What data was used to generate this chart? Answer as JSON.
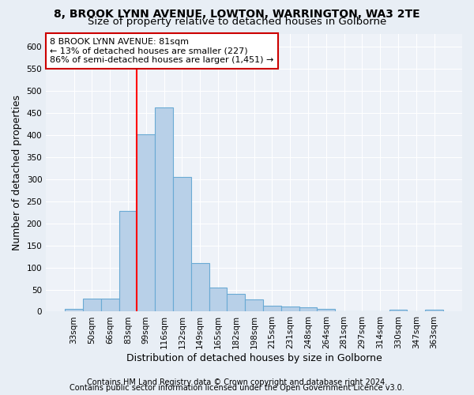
{
  "title1": "8, BROOK LYNN AVENUE, LOWTON, WARRINGTON, WA3 2TE",
  "title2": "Size of property relative to detached houses in Golborne",
  "xlabel": "Distribution of detached houses by size in Golborne",
  "ylabel": "Number of detached properties",
  "categories": [
    "33sqm",
    "50sqm",
    "66sqm",
    "83sqm",
    "99sqm",
    "116sqm",
    "132sqm",
    "149sqm",
    "165sqm",
    "182sqm",
    "198sqm",
    "215sqm",
    "231sqm",
    "248sqm",
    "264sqm",
    "281sqm",
    "297sqm",
    "314sqm",
    "330sqm",
    "347sqm",
    "363sqm"
  ],
  "values": [
    7,
    30,
    30,
    228,
    402,
    463,
    306,
    110,
    54,
    40,
    27,
    14,
    12,
    10,
    7,
    0,
    0,
    0,
    5,
    0,
    5
  ],
  "bar_color": "#b8d0e8",
  "bar_edge_color": "#6aaad4",
  "red_line_x": 3.5,
  "ylim": [
    0,
    630
  ],
  "yticks": [
    0,
    50,
    100,
    150,
    200,
    250,
    300,
    350,
    400,
    450,
    500,
    550,
    600
  ],
  "annotation_line1": "8 BROOK LYNN AVENUE: 81sqm",
  "annotation_line2": "← 13% of detached houses are smaller (227)",
  "annotation_line3": "86% of semi-detached houses are larger (1,451) →",
  "annotation_box_color": "#ffffff",
  "annotation_box_edge": "#cc0000",
  "footer1": "Contains HM Land Registry data © Crown copyright and database right 2024.",
  "footer2": "Contains public sector information licensed under the Open Government Licence v3.0.",
  "bg_color": "#e8eef5",
  "plot_bg_color": "#eef2f8",
  "grid_color": "#ffffff",
  "title1_fontsize": 10,
  "title2_fontsize": 9.5,
  "tick_fontsize": 7.5,
  "label_fontsize": 9,
  "footer_fontsize": 7,
  "annotation_fontsize": 8
}
